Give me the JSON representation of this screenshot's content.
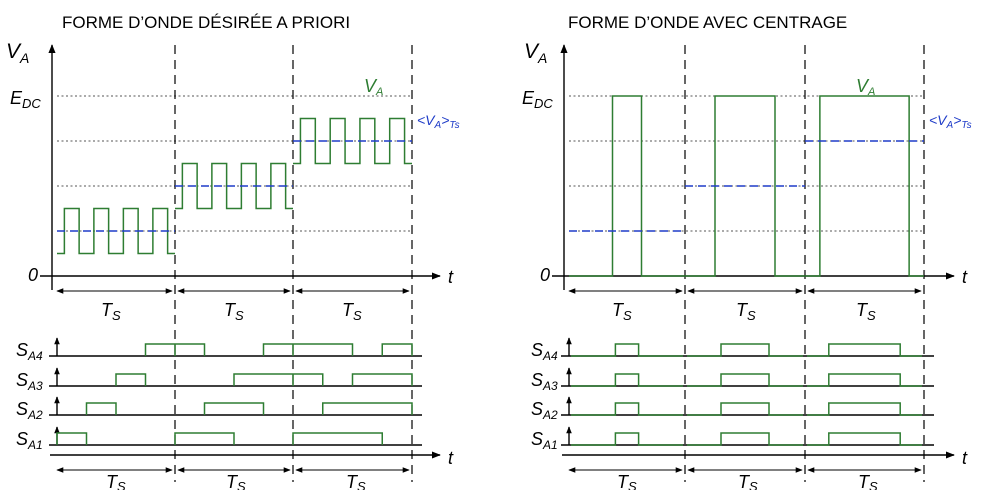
{
  "left_panel": {
    "title": "FORME D’ONDE DÉSIRÉE A PRIORI",
    "y_axis": {
      "label_main": "V",
      "label_sub": "A"
    },
    "x_axis_label": "t",
    "level_edc": {
      "main": "E",
      "sub": "DC"
    },
    "level_zero": "0",
    "wave_label": {
      "main": "V",
      "sub": "A"
    },
    "avg_label": {
      "open": "<V",
      "sub": "A",
      "close": ">",
      "sub2": "Ts"
    },
    "periods": [
      {
        "ts_main": "T",
        "ts_sub": "S",
        "duty": 0.25
      },
      {
        "ts_main": "T",
        "ts_sub": "S",
        "duty": 0.5
      },
      {
        "ts_main": "T",
        "ts_sub": "S",
        "duty": 0.75
      }
    ],
    "switch_rows": [
      {
        "main": "S",
        "sub": "A4"
      },
      {
        "main": "S",
        "sub": "A3"
      },
      {
        "main": "S",
        "sub": "A2"
      },
      {
        "main": "S",
        "sub": "A1"
      }
    ],
    "bottom_x_label": "t"
  },
  "right_panel": {
    "title": "FORME D’ONDE AVEC CENTRAGE",
    "y_axis": {
      "label_main": "V",
      "label_sub": "A"
    },
    "x_axis_label": "t",
    "level_edc": {
      "main": "E",
      "sub": "DC"
    },
    "level_zero": "0",
    "wave_label": {
      "main": "V",
      "sub": "A"
    },
    "avg_label": {
      "open": "<V",
      "sub": "A",
      "close": ">",
      "sub2": "Ts"
    },
    "periods": [
      {
        "ts_main": "T",
        "ts_sub": "S",
        "duty": 0.25
      },
      {
        "ts_main": "T",
        "ts_sub": "S",
        "duty": 0.5
      },
      {
        "ts_main": "T",
        "ts_sub": "S",
        "duty": 0.75
      }
    ],
    "switch_rows": [
      {
        "main": "S",
        "sub": "A4"
      },
      {
        "main": "S",
        "sub": "A3"
      },
      {
        "main": "S",
        "sub": "A2"
      },
      {
        "main": "S",
        "sub": "A1"
      }
    ],
    "bottom_x_label": "t"
  }
}
